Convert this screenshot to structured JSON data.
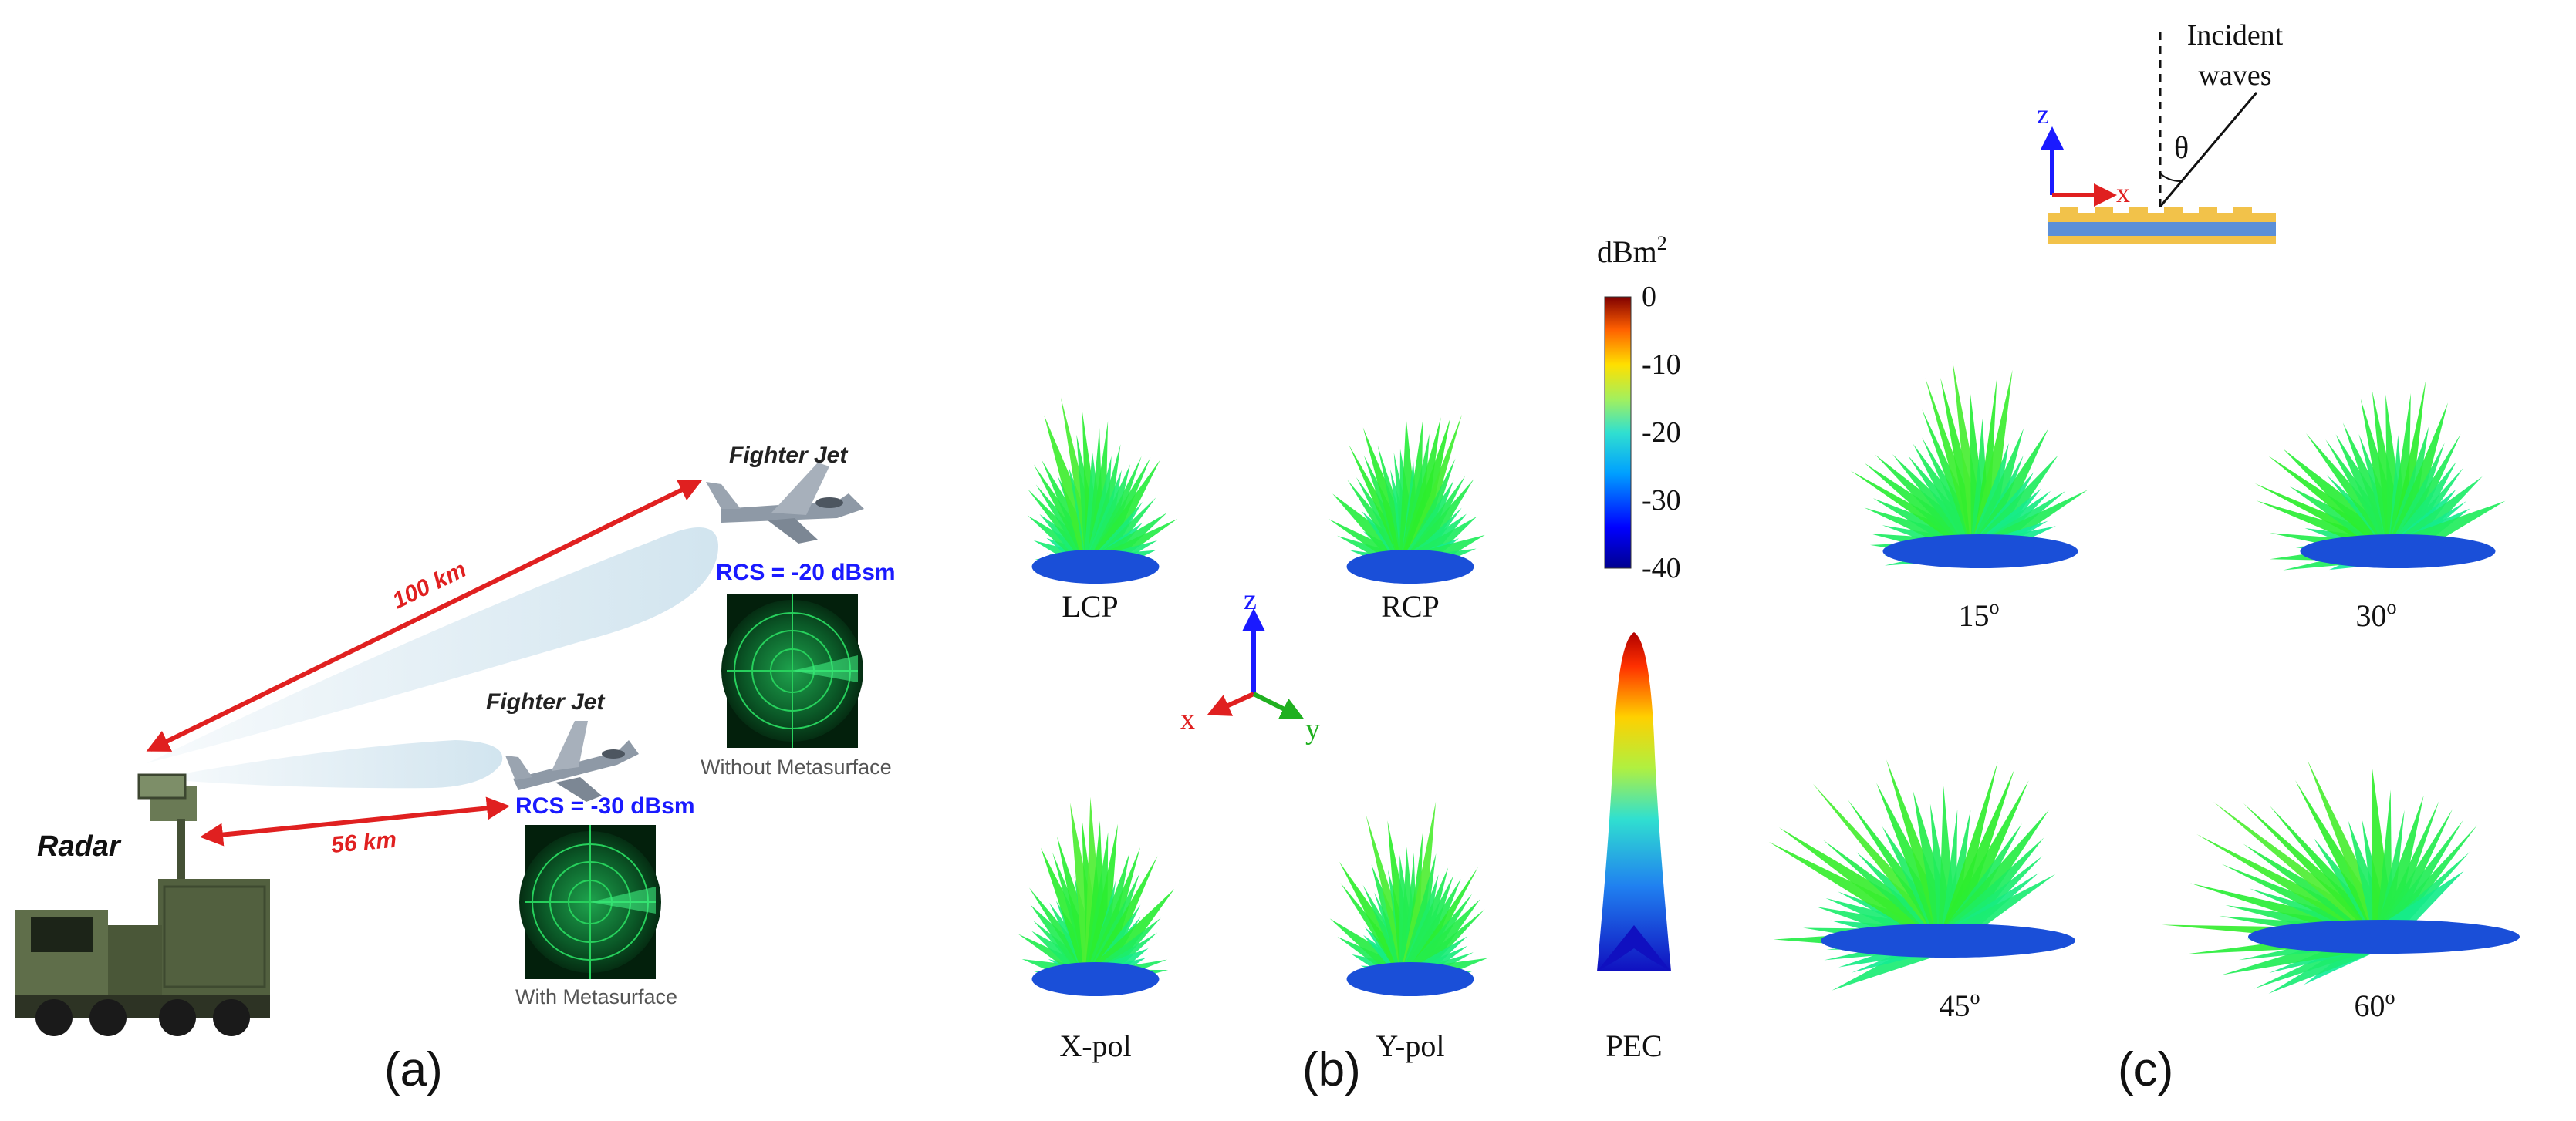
{
  "colors": {
    "arrow_red": "#e02020",
    "beam_blue": "#cfe3ee",
    "rcs_blue": "#1a1aff",
    "radar_green": "#1fd06a",
    "jet_gray": "#8e99a6",
    "truck_green": "#52603f"
  },
  "panel_a": {
    "label": "(a)",
    "radar_label": "Radar",
    "jet_top": {
      "label": "Fighter Jet",
      "rcs": "RCS = -20 dBsm",
      "caption": "Without Metasurface",
      "distance": "100 km"
    },
    "jet_bottom": {
      "label": "Fighter Jet",
      "rcs": "RCS = -30 dBsm",
      "caption": "With Metasurface",
      "distance": "56 km"
    }
  },
  "panel_b": {
    "label": "(b)",
    "patterns": [
      "LCP",
      "RCP",
      "X-pol",
      "Y-pol",
      "PEC"
    ],
    "axes": {
      "z": "z",
      "x": "x",
      "y": "y"
    },
    "colorbar": {
      "title": "dBm",
      "title_sup": "2",
      "ticks": [
        "0",
        "-10",
        "-20",
        "-30",
        "-40"
      ],
      "range": [
        -40,
        0
      ]
    }
  },
  "panel_c": {
    "label": "(c)",
    "incident_label_1": "Incident",
    "incident_label_2": "waves",
    "theta": "θ",
    "axes": {
      "z": "z",
      "x": "x"
    },
    "angles": [
      {
        "value": "15",
        "unit": "o"
      },
      {
        "value": "30",
        "unit": "o"
      },
      {
        "value": "45",
        "unit": "o"
      },
      {
        "value": "60",
        "unit": "o"
      }
    ]
  }
}
